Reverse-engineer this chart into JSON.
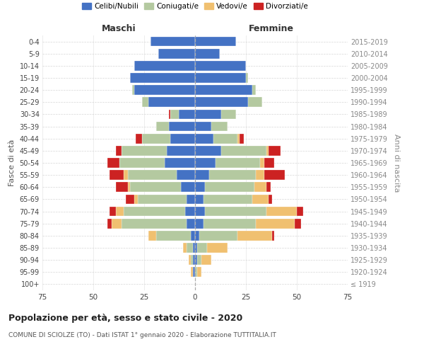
{
  "age_groups": [
    "100+",
    "95-99",
    "90-94",
    "85-89",
    "80-84",
    "75-79",
    "70-74",
    "65-69",
    "60-64",
    "55-59",
    "50-54",
    "45-49",
    "40-44",
    "35-39",
    "30-34",
    "25-29",
    "20-24",
    "15-19",
    "10-14",
    "5-9",
    "0-4"
  ],
  "birth_years": [
    "≤ 1919",
    "1920-1924",
    "1925-1929",
    "1930-1934",
    "1935-1939",
    "1940-1944",
    "1945-1949",
    "1950-1954",
    "1955-1959",
    "1960-1964",
    "1965-1969",
    "1970-1974",
    "1975-1979",
    "1980-1984",
    "1985-1989",
    "1990-1994",
    "1995-1999",
    "2000-2004",
    "2005-2009",
    "2010-2014",
    "2015-2019"
  ],
  "colors": {
    "celibe": "#4472C4",
    "coniugato": "#B4C9A0",
    "vedovo": "#F0C070",
    "divorziato": "#CC2222"
  },
  "males": {
    "celibe": [
      0,
      1,
      1,
      1,
      2,
      4,
      5,
      4,
      7,
      9,
      15,
      14,
      12,
      13,
      8,
      23,
      30,
      32,
      30,
      18,
      22
    ],
    "coniugato": [
      0,
      0,
      1,
      3,
      17,
      32,
      30,
      24,
      25,
      24,
      22,
      22,
      14,
      6,
      4,
      3,
      1,
      0,
      0,
      0,
      0
    ],
    "vedovo": [
      0,
      1,
      1,
      2,
      4,
      5,
      4,
      2,
      1,
      2,
      0,
      0,
      0,
      0,
      0,
      0,
      0,
      0,
      0,
      0,
      0
    ],
    "divorziato": [
      0,
      0,
      0,
      0,
      0,
      2,
      3,
      4,
      6,
      7,
      6,
      3,
      3,
      0,
      1,
      0,
      0,
      0,
      0,
      0,
      0
    ]
  },
  "females": {
    "celibe": [
      0,
      0,
      1,
      1,
      2,
      4,
      5,
      4,
      5,
      7,
      10,
      13,
      9,
      8,
      13,
      26,
      28,
      25,
      25,
      12,
      20
    ],
    "coniugato": [
      0,
      1,
      2,
      5,
      19,
      26,
      30,
      24,
      24,
      23,
      22,
      22,
      12,
      8,
      7,
      7,
      2,
      1,
      0,
      0,
      0
    ],
    "vedovo": [
      0,
      2,
      5,
      10,
      17,
      19,
      15,
      8,
      6,
      4,
      2,
      1,
      1,
      0,
      0,
      0,
      0,
      0,
      0,
      0,
      0
    ],
    "divorziato": [
      0,
      0,
      0,
      0,
      1,
      3,
      3,
      2,
      2,
      10,
      5,
      6,
      2,
      0,
      0,
      0,
      0,
      0,
      0,
      0,
      0
    ]
  },
  "title": "Popolazione per età, sesso e stato civile - 2020",
  "subtitle": "COMUNE DI SCIOLZE (TO) - Dati ISTAT 1° gennaio 2020 - Elaborazione TUTTITALIA.IT",
  "xlabel_left": "Maschi",
  "xlabel_right": "Femmine",
  "ylabel_left": "Fasce di età",
  "ylabel_right": "Anni di nascita",
  "xlim": 75,
  "background_color": "#FFFFFF",
  "grid_color": "#CCCCCC"
}
